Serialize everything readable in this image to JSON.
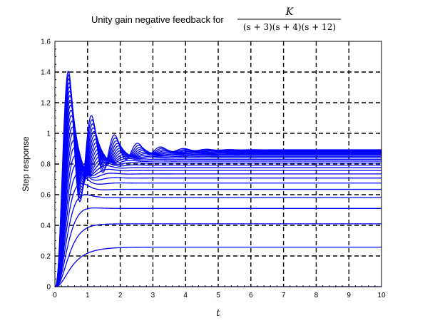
{
  "chart_data": {
    "type": "line",
    "title": "Unity gain negative feedback for",
    "title_formula": {
      "numerator": "K",
      "denominator": "(s + 3)(s + 4)(s + 12)"
    },
    "xlabel": "t",
    "ylabel": "Step response",
    "xlim": [
      0,
      10
    ],
    "ylim": [
      0,
      1.6
    ],
    "xticks": [
      0,
      1,
      2,
      3,
      4,
      5,
      6,
      7,
      8,
      9,
      10
    ],
    "yticks": [
      "0",
      "0.2",
      "0.4",
      "0.6",
      "0.8",
      "1",
      "1.2",
      "1.4",
      "1.6"
    ],
    "grid": true,
    "line_color": "#0000ff",
    "series_model": "step response of K/((s+3)(s+4)(s+12)) with unity negative feedback",
    "gains": [
      0,
      50,
      100,
      150,
      200,
      250,
      300,
      350,
      400,
      450,
      500,
      550,
      600,
      650,
      700,
      750,
      800,
      850,
      900,
      950,
      1000,
      1050,
      1100,
      1150,
      1200
    ],
    "t_step": 0.02,
    "t_end": 10
  }
}
